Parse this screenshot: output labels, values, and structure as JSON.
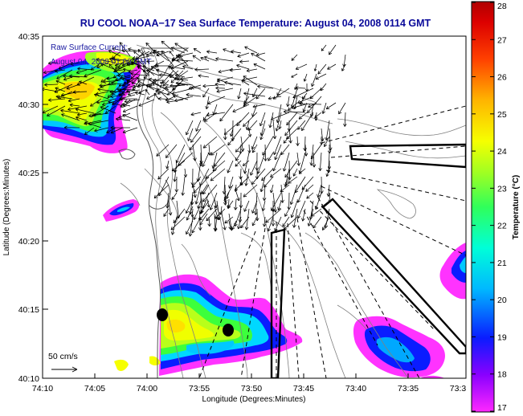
{
  "chart_data": {
    "type": "map",
    "title": "RU COOL  NOAA−17  Sea Surface Temperature:  August 04, 2008 0114 GMT",
    "xlabel": "Longitude (Degrees:Minutes)",
    "ylabel": "Latitude (Degrees:Minutes)",
    "x_ticks": [
      "74:10",
      "74:05",
      "74:00",
      "73:55",
      "73:50",
      "73:45",
      "73:40",
      "73:35",
      "73:3"
    ],
    "y_ticks": [
      "40:35",
      "40:30",
      "40:25",
      "40:20",
      "40:15",
      "40:10"
    ],
    "current_label_line1": "Raw Surface Current:",
    "current_label_line2": "August 04, 2008 01:00 GMT",
    "scale_label": "50 cm/s",
    "colorbar": {
      "label": "Temperature (°C)",
      "min": 17,
      "max": 28,
      "ticks": [
        "28",
        "27",
        "26",
        "25",
        "24",
        "23",
        "22",
        "21",
        "20",
        "19",
        "18",
        "17"
      ]
    }
  },
  "colors": {
    "title": "#0a0a9a",
    "raw_text": "#1a1aa0",
    "land": "#ffffff",
    "contour": "#808080",
    "arrow": "#000000"
  }
}
